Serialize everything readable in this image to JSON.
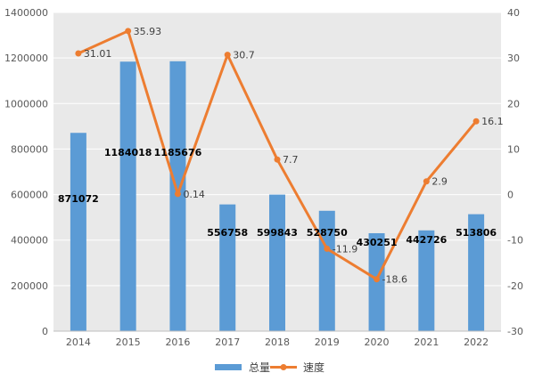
{
  "chart_data": {
    "type": "bar",
    "categories": [
      "2014",
      "2015",
      "2016",
      "2017",
      "2018",
      "2019",
      "2020",
      "2021",
      "2022"
    ],
    "series": [
      {
        "name": "总量",
        "type": "bar",
        "axis": "left",
        "values": [
          871072,
          1184018,
          1185676,
          556758,
          599843,
          528750,
          430251,
          442726,
          513806
        ]
      },
      {
        "name": "速度",
        "type": "line",
        "axis": "right",
        "values": [
          31.01,
          35.93,
          0.14,
          30.7,
          7.7,
          -11.9,
          -18.6,
          2.9,
          16.1
        ]
      }
    ],
    "bar_labels": [
      "871072",
      "1184018",
      "1185676",
      "556758",
      "599843",
      "528750",
      "430251",
      "442726",
      "513806"
    ],
    "line_labels": [
      "31.01",
      "35.93",
      "0.14",
      "30.7",
      "7.7",
      "-11.9",
      "-18.6",
      "2.9",
      "16.1"
    ],
    "y_left": {
      "min": 0,
      "max": 1400000,
      "ticks": [
        "0",
        "200000",
        "400000",
        "600000",
        "800000",
        "1000000",
        "1200000",
        "1400000"
      ]
    },
    "y_right": {
      "min": -30,
      "max": 40,
      "ticks": [
        "-30",
        "-20",
        "-10",
        "0",
        "10",
        "20",
        "30",
        "40"
      ]
    },
    "title": "",
    "xlabel": "",
    "ylabel": "",
    "grid": true,
    "legend_position": "bottom",
    "colors": {
      "bar": "#5B9BD5",
      "line": "#ED7D31",
      "plot_bg": "#E9E9E9",
      "grid": "#FFFFFF"
    }
  }
}
